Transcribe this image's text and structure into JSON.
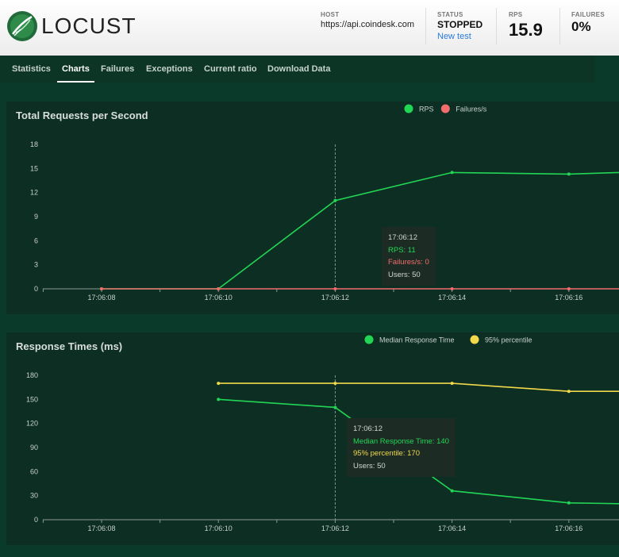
{
  "header": {
    "brand": "LOCUST",
    "host_label": "HOST",
    "host_value": "https://api.coindesk.com",
    "status_label": "STATUS",
    "status_value": "STOPPED",
    "new_test_label": "New test",
    "rps_label": "RPS",
    "rps_value": "15.9",
    "failures_label": "FAILURES",
    "failures_value": "0%"
  },
  "nav": {
    "tabs": [
      "Statistics",
      "Charts",
      "Failures",
      "Exceptions",
      "Current ratio",
      "Download Data"
    ],
    "active": "Charts"
  },
  "colors": {
    "rps": "#22d655",
    "failures": "#f26d6d",
    "median": "#22d655",
    "p95": "#f2d84b",
    "axis": "#cccccc"
  },
  "chart_data": [
    {
      "type": "line",
      "title": "Total Requests per Second",
      "legend": [
        "RPS",
        "Failures/s"
      ],
      "legend_position": "top",
      "x_ticks": [
        "17:06:08",
        "17:06:10",
        "17:06:12",
        "17:06:14",
        "17:06:16"
      ],
      "y_ticks": [
        0,
        3,
        6,
        9,
        12,
        15,
        18
      ],
      "ylim": [
        0,
        18
      ],
      "series": [
        {
          "name": "RPS",
          "color": "#22d655",
          "points": [
            [
              "17:06:08",
              0
            ],
            [
              "17:06:10",
              0
            ],
            [
              "17:06:12",
              11
            ],
            [
              "17:06:14",
              14.5
            ],
            [
              "17:06:16",
              14.3
            ],
            [
              "17:06:17",
              14.5
            ]
          ]
        },
        {
          "name": "Failures/s",
          "color": "#f26d6d",
          "points": [
            [
              "17:06:08",
              0
            ],
            [
              "17:06:10",
              0
            ],
            [
              "17:06:12",
              0
            ],
            [
              "17:06:14",
              0
            ],
            [
              "17:06:16",
              0
            ],
            [
              "17:06:17",
              0
            ]
          ]
        }
      ],
      "tooltip": {
        "time": "17:06:12",
        "lines": [
          {
            "text": "RPS: 11",
            "color": "#22d655"
          },
          {
            "text": "Failures/s: 0",
            "color": "#f26d6d"
          },
          {
            "text": "Users: 50",
            "color": "#cfd6d2"
          }
        ]
      }
    },
    {
      "type": "line",
      "title": "Response Times (ms)",
      "legend": [
        "Median Response Time",
        "95% percentile"
      ],
      "legend_position": "top",
      "x_ticks": [
        "17:06:08",
        "17:06:10",
        "17:06:12",
        "17:06:14",
        "17:06:16"
      ],
      "y_ticks": [
        0,
        30,
        60,
        90,
        120,
        150,
        180
      ],
      "ylim": [
        0,
        180
      ],
      "series": [
        {
          "name": "Median Response Time",
          "color": "#22d655",
          "points": [
            [
              "17:06:10",
              150
            ],
            [
              "17:06:12",
              140
            ],
            [
              "17:06:14",
              36
            ],
            [
              "17:06:16",
              21
            ],
            [
              "17:06:17",
              20
            ]
          ]
        },
        {
          "name": "95% percentile",
          "color": "#f2d84b",
          "points": [
            [
              "17:06:10",
              170
            ],
            [
              "17:06:12",
              170
            ],
            [
              "17:06:14",
              170
            ],
            [
              "17:06:16",
              160
            ],
            [
              "17:06:17",
              160
            ]
          ]
        }
      ],
      "tooltip": {
        "time": "17:06:12",
        "lines": [
          {
            "text": "Median Response Time: 140",
            "color": "#22d655"
          },
          {
            "text": "95% percentile: 170",
            "color": "#f2d84b"
          },
          {
            "text": "Users: 50",
            "color": "#cfd6d2"
          }
        ]
      }
    }
  ]
}
